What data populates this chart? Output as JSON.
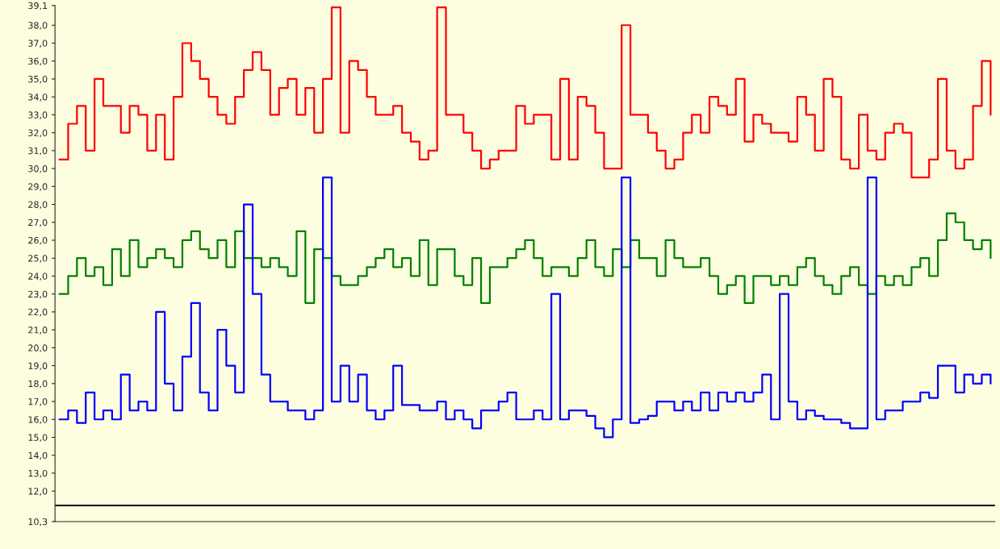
{
  "chart_data": {
    "type": "step",
    "categories": [
      null,
      null,
      null,
      null,
      null,
      null,
      null,
      null,
      null,
      null,
      null,
      null,
      null,
      null,
      null,
      null,
      null,
      null,
      null,
      null,
      null,
      null,
      null,
      null,
      null,
      null,
      null,
      null,
      null,
      null,
      null,
      null,
      null,
      null,
      null,
      null,
      null,
      null,
      null,
      null,
      null,
      null,
      null,
      null,
      null,
      null,
      null,
      null,
      null,
      null,
      null,
      null,
      null,
      null,
      null,
      null,
      null,
      null,
      null,
      null,
      null,
      null,
      null,
      null,
      null,
      null,
      null,
      null,
      null,
      null,
      null,
      null,
      null,
      null,
      null,
      null,
      null,
      null,
      null,
      null,
      null,
      null,
      null,
      null,
      null,
      null,
      null,
      null,
      null,
      null,
      null,
      null,
      null,
      null,
      null,
      null,
      null,
      null,
      null,
      null,
      null,
      null,
      null,
      null,
      null,
      null,
      null
    ],
    "series": [
      {
        "color": "#ff0000",
        "values": [
          30.5,
          32.5,
          33.5,
          31,
          35,
          33.5,
          33.5,
          32,
          33.5,
          33,
          31,
          33,
          30.5,
          34,
          37,
          36,
          35,
          34,
          33,
          32.5,
          34,
          35.5,
          36.5,
          35.5,
          33,
          34.5,
          35,
          33,
          34.5,
          32,
          35,
          39,
          32,
          36,
          35.5,
          34,
          33,
          33,
          33.5,
          32,
          31.5,
          30.5,
          31,
          39,
          33,
          33,
          32,
          31,
          30,
          30.5,
          31,
          31,
          33.5,
          32.5,
          33,
          33,
          30.5,
          35,
          30.5,
          34,
          33.5,
          32,
          30,
          30,
          38,
          33,
          33,
          32,
          31,
          30,
          30.5,
          32,
          33,
          32,
          34,
          33.5,
          33,
          35,
          31.5,
          33,
          32.5,
          32,
          32,
          31.5,
          34,
          33,
          31,
          35,
          34,
          30.5,
          30,
          33,
          31,
          30.5,
          32,
          32.5,
          32,
          29.5,
          29.5,
          30.5,
          35,
          31,
          30,
          30.5,
          33.5,
          36,
          33
        ]
      },
      {
        "color": "#008000",
        "values": [
          23,
          24,
          25,
          24,
          24.5,
          23.5,
          25.5,
          24,
          26,
          24.5,
          25,
          25.5,
          25,
          24.5,
          26,
          26.5,
          25.5,
          25,
          26,
          24.5,
          26.5,
          25,
          25,
          24.5,
          25,
          24.5,
          24,
          26.5,
          22.5,
          25.5,
          25,
          24,
          23.5,
          23.5,
          24,
          24.5,
          25,
          25.5,
          24.5,
          25,
          24,
          26,
          23.5,
          25.5,
          25.5,
          24,
          23.5,
          25,
          22.5,
          24.5,
          24.5,
          25,
          25.5,
          26,
          25,
          24,
          24.5,
          24.5,
          24,
          25,
          26,
          24.5,
          24,
          25.5,
          24.5,
          26,
          25,
          25,
          24,
          26,
          25,
          24.5,
          24.5,
          25,
          24,
          23,
          23.5,
          24,
          22.5,
          24,
          24,
          23.5,
          24,
          23.5,
          24.5,
          25,
          24,
          23.5,
          23,
          24,
          24.5,
          23.5,
          23,
          24,
          23.5,
          24,
          23.5,
          24.5,
          25,
          24,
          26,
          27.5,
          27,
          26,
          25.5,
          26,
          25
        ]
      },
      {
        "color": "#0000ff",
        "values": [
          16,
          16.5,
          15.8,
          17.5,
          16,
          16.5,
          16,
          18.5,
          16.5,
          17,
          16.5,
          22,
          18,
          16.5,
          19.5,
          22.5,
          17.5,
          16.5,
          21,
          19,
          17.5,
          28,
          23,
          18.5,
          17,
          17,
          16.5,
          16.5,
          16,
          16.5,
          29.5,
          17,
          19,
          17,
          18.5,
          16.5,
          16,
          16.5,
          19,
          16.8,
          16.8,
          16.5,
          16.5,
          17,
          16,
          16.5,
          16,
          15.5,
          16.5,
          16.5,
          17,
          17.5,
          16,
          16,
          16.5,
          16,
          23,
          16,
          16.5,
          16.5,
          16.2,
          15.5,
          15,
          16,
          29.5,
          15.8,
          16,
          16.2,
          17,
          17,
          16.5,
          17,
          16.5,
          17.5,
          16.5,
          17.5,
          17,
          17.5,
          17,
          17.5,
          18.5,
          16,
          23,
          17,
          16,
          16.5,
          16.2,
          16,
          16,
          15.8,
          15.5,
          15.5,
          29.5,
          16,
          16.5,
          16.5,
          17,
          17,
          17.5,
          17.2,
          19,
          19,
          17.5,
          18.5,
          18,
          18.5,
          18
        ]
      }
    ],
    "ylim": [
      10.3,
      39.1
    ],
    "yticks": [
      {
        "value": 10.3,
        "label": "10,3"
      },
      {
        "value": 12,
        "label": "12,0"
      },
      {
        "value": 13,
        "label": "13,0"
      },
      {
        "value": 14,
        "label": "14,0"
      },
      {
        "value": 15,
        "label": "15,0"
      },
      {
        "value": 16,
        "label": "16,0"
      },
      {
        "value": 17,
        "label": "17,0"
      },
      {
        "value": 18,
        "label": "18,0"
      },
      {
        "value": 19,
        "label": "19,0"
      },
      {
        "value": 20,
        "label": "20,0"
      },
      {
        "value": 21,
        "label": "21,0"
      },
      {
        "value": 22,
        "label": "22,0"
      },
      {
        "value": 23,
        "label": "23,0"
      },
      {
        "value": 24,
        "label": "24,0"
      },
      {
        "value": 25,
        "label": "25,0"
      },
      {
        "value": 26,
        "label": "26,0"
      },
      {
        "value": 27,
        "label": "27,0"
      },
      {
        "value": 28,
        "label": "28,0"
      },
      {
        "value": 29,
        "label": "29,0"
      },
      {
        "value": 30,
        "label": "30,0"
      },
      {
        "value": 31,
        "label": "31,0"
      },
      {
        "value": 32,
        "label": "32,0"
      },
      {
        "value": 33,
        "label": "33,0"
      },
      {
        "value": 34,
        "label": "34,0"
      },
      {
        "value": 35,
        "label": "35,0"
      },
      {
        "value": 36,
        "label": "36,0"
      },
      {
        "value": 37,
        "label": "37,0"
      },
      {
        "value": 38,
        "label": "38,0"
      },
      {
        "value": 39.1,
        "label": "39,1"
      }
    ],
    "ref_lines": [
      {
        "axis": "y",
        "value": 11.2,
        "color": "#000000"
      }
    ],
    "grid": false,
    "legend": false
  }
}
